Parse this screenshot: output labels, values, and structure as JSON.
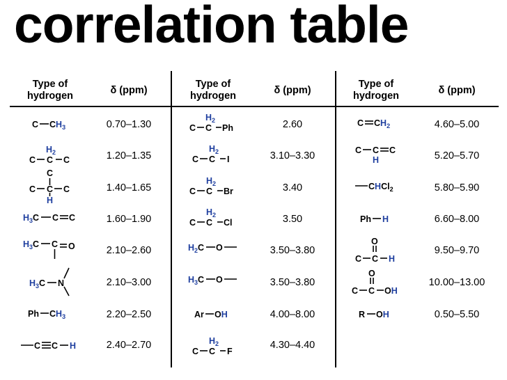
{
  "title": "correlation table",
  "columns": [
    {
      "type_header": [
        "Type of",
        "hydrogen"
      ],
      "delta_header": "δ (ppm)"
    },
    {
      "type_header": [
        "Type of",
        "hydrogen"
      ],
      "delta_header": "δ (ppm)"
    },
    {
      "type_header": [
        "Type of",
        "hydrogen"
      ],
      "delta_header": "δ (ppm)"
    }
  ],
  "rows": [
    {
      "col1": {
        "structure": "C–CH3",
        "shift": "0.70–1.30"
      },
      "col2": {
        "structure": "C–CH2–Ph",
        "shift": "2.60"
      },
      "col3": {
        "structure": "C=CH2",
        "shift": "4.60–5.00"
      }
    },
    {
      "col1": {
        "structure": "C–CH2–C",
        "shift": "1.20–1.35"
      },
      "col2": {
        "structure": "C–CH2–I",
        "shift": "3.10–3.30"
      },
      "col3": {
        "structure": "C–CH=C",
        "shift": "5.20–5.70"
      }
    },
    {
      "col1": {
        "structure": "C–CH(C)–C",
        "shift": "1.40–1.65"
      },
      "col2": {
        "structure": "C–CH2–Br",
        "shift": "3.40"
      },
      "col3": {
        "structure": "–CHCl2",
        "shift": "5.80–5.90"
      }
    },
    {
      "col1": {
        "structure": "H3C–C=C",
        "shift": "1.60–1.90"
      },
      "col2": {
        "structure": "C–CH2–Cl",
        "shift": "3.50"
      },
      "col3": {
        "structure": "Ph–H",
        "shift": "6.60–8.00"
      }
    },
    {
      "col1": {
        "structure": "H3C–C(=O)–",
        "shift": "2.10–2.60"
      },
      "col2": {
        "structure": "H2C–O–",
        "shift": "3.50–3.80"
      },
      "col3": {
        "structure": "C–C(=O)–H",
        "shift": "9.50–9.70"
      }
    },
    {
      "col1": {
        "structure": "H3C–N<",
        "shift": "2.10–3.00"
      },
      "col2": {
        "structure": "H3C–O–",
        "shift": "3.50–3.80"
      },
      "col3": {
        "structure": "C–C(=O)–OH",
        "shift": "10.00–13.00"
      }
    },
    {
      "col1": {
        "structure": "Ph–CH3",
        "shift": "2.20–2.50"
      },
      "col2": {
        "structure": "Ar–OH",
        "shift": "4.00–8.00"
      },
      "col3": {
        "structure": "R–OH",
        "shift": "0.50–5.50"
      }
    },
    {
      "col1": {
        "structure": "–C≡C–H",
        "shift": "2.40–2.70"
      },
      "col2": {
        "structure": "C–CH2–F",
        "shift": "4.30–4.40"
      },
      "col3": {
        "structure": "",
        "shift": ""
      }
    }
  ],
  "colors": {
    "highlight_h": "#1f3f9f",
    "text": "#000000",
    "rule": "#000000"
  }
}
